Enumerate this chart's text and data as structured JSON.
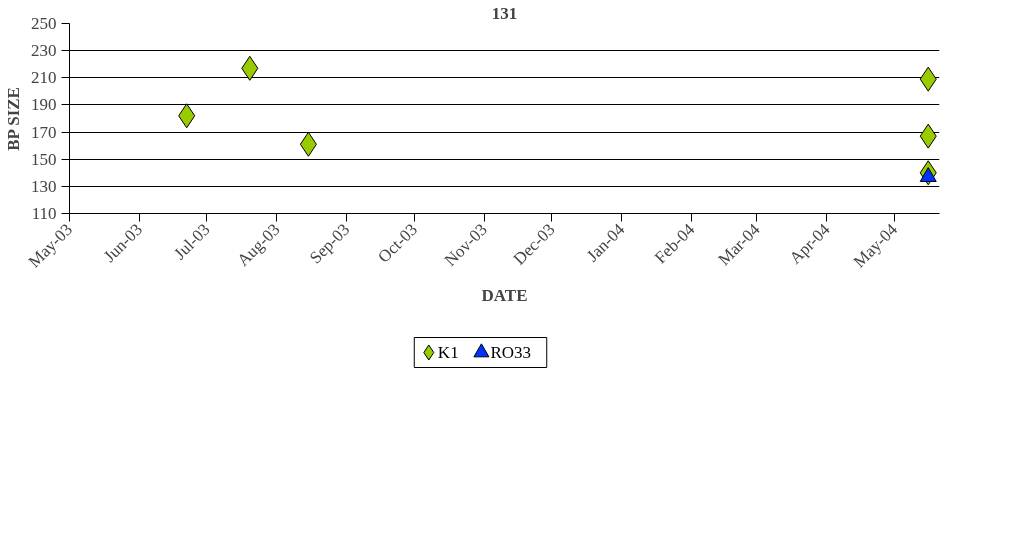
{
  "chart_data": {
    "type": "scatter",
    "title": "131",
    "xlabel": "DATE",
    "ylabel": "BP SIZE",
    "series": [
      {
        "name": "K1",
        "color": "#99cc00",
        "marker": "diamond",
        "x": [
          "2003-06-22",
          "2003-07-20",
          "2003-08-15",
          "2004-05-16",
          "2004-05-16",
          "2004-05-16"
        ],
        "values": [
          182,
          217,
          161,
          209,
          167,
          140
        ]
      },
      {
        "name": "RO33",
        "color": "#0033ff",
        "marker": "triangle",
        "x": [
          "2004-05-16"
        ],
        "values": [
          137
        ]
      }
    ],
    "xlim": [
      "2003-05-01",
      "2004-05-21"
    ],
    "xticks": [
      {
        "value": "2003-05-01",
        "label": "May-03"
      },
      {
        "value": "2003-06-01",
        "label": "Jun-03"
      },
      {
        "value": "2003-07-01",
        "label": "Jul-03"
      },
      {
        "value": "2003-08-01",
        "label": "Aug-03"
      },
      {
        "value": "2003-09-01",
        "label": "Sep-03"
      },
      {
        "value": "2003-10-01",
        "label": "Oct-03"
      },
      {
        "value": "2003-11-01",
        "label": "Nov-03"
      },
      {
        "value": "2003-12-01",
        "label": "Dec-03"
      },
      {
        "value": "2004-01-01",
        "label": "Jan-04"
      },
      {
        "value": "2004-02-01",
        "label": "Feb-04"
      },
      {
        "value": "2004-03-01",
        "label": "Mar-04"
      },
      {
        "value": "2004-04-01",
        "label": "Apr-04"
      },
      {
        "value": "2004-05-01",
        "label": "May-04"
      }
    ],
    "ylim": [
      110,
      250
    ],
    "yticks": [
      110,
      130,
      150,
      170,
      190,
      210,
      230,
      250
    ],
    "grid": "y",
    "legend": "bottom"
  }
}
